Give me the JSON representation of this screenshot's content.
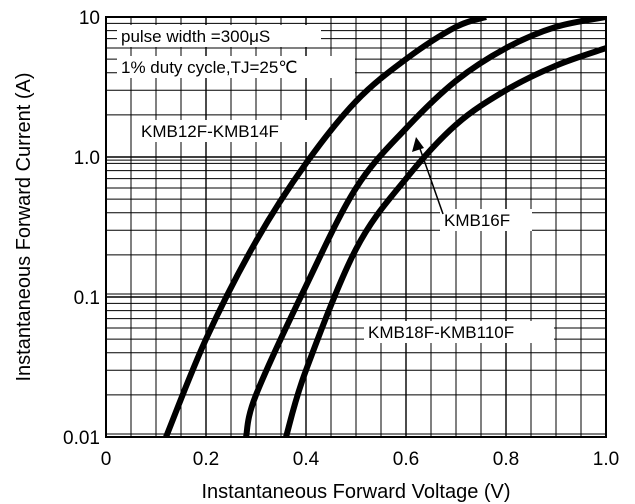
{
  "chart_data": {
    "type": "line",
    "xlabel": "Instantaneous Forward Voltage (V)",
    "ylabel": "Instantaneous Forward Current (A)",
    "xlim": [
      0,
      1.0
    ],
    "ylim": [
      0.01,
      10
    ],
    "yscale": "log",
    "grid": true,
    "x_ticks": [
      0,
      0.2,
      0.4,
      0.6,
      0.8,
      1.0
    ],
    "x_tick_labels": [
      "0",
      "0.2",
      "0.4",
      "0.6",
      "0.8",
      "1.0"
    ],
    "y_ticks": [
      0.01,
      0.1,
      1.0,
      10
    ],
    "y_tick_labels": [
      "0.01",
      "0.1",
      "1.0",
      "10"
    ],
    "annotations": {
      "pulse": "pulse width =300μS",
      "duty": "1% duty cycle,TJ=25℃"
    },
    "series": [
      {
        "name": "KMB12F-KMB14F",
        "x": [
          0.12,
          0.2,
          0.3,
          0.4,
          0.5,
          0.6,
          0.7,
          0.76
        ],
        "y": [
          0.01,
          0.05,
          0.25,
          0.9,
          2.5,
          5.0,
          8.5,
          10
        ]
      },
      {
        "name": "KMB16F",
        "x": [
          0.28,
          0.3,
          0.4,
          0.5,
          0.6,
          0.7,
          0.8,
          0.9,
          1.0
        ],
        "y": [
          0.01,
          0.02,
          0.12,
          0.6,
          1.6,
          3.5,
          6.0,
          8.5,
          10
        ]
      },
      {
        "name": "KMB18F-KMB110F",
        "x": [
          0.36,
          0.4,
          0.5,
          0.6,
          0.7,
          0.8,
          0.9,
          1.0
        ],
        "y": [
          0.01,
          0.03,
          0.22,
          0.7,
          1.7,
          3.0,
          4.5,
          6.0
        ]
      }
    ]
  }
}
